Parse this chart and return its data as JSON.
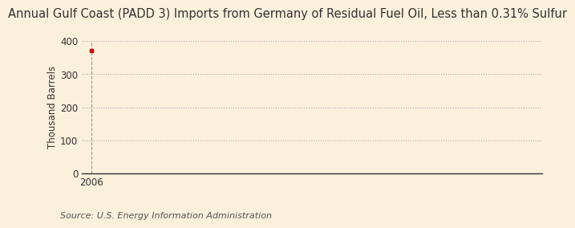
{
  "title": "Annual Gulf Coast (PADD 3) Imports from Germany of Residual Fuel Oil, Less than 0.31% Sulfur",
  "ylabel": "Thousand Barrels",
  "source": "Source: U.S. Energy Information Administration",
  "x_data": [
    2006
  ],
  "y_data": [
    371
  ],
  "dot_color": "#cc0000",
  "ylim": [
    0,
    400
  ],
  "yticks": [
    0,
    100,
    200,
    300,
    400
  ],
  "xlim": [
    2005.5,
    2030
  ],
  "xticks": [
    2006
  ],
  "background_color": "#faf0dc",
  "plot_bg_color": "#faf0dc",
  "grid_color": "#aaaaaa",
  "vline_color": "#999999",
  "axis_color": "#333333",
  "title_fontsize": 10.5,
  "label_fontsize": 8.5,
  "tick_fontsize": 8.5,
  "source_fontsize": 8
}
